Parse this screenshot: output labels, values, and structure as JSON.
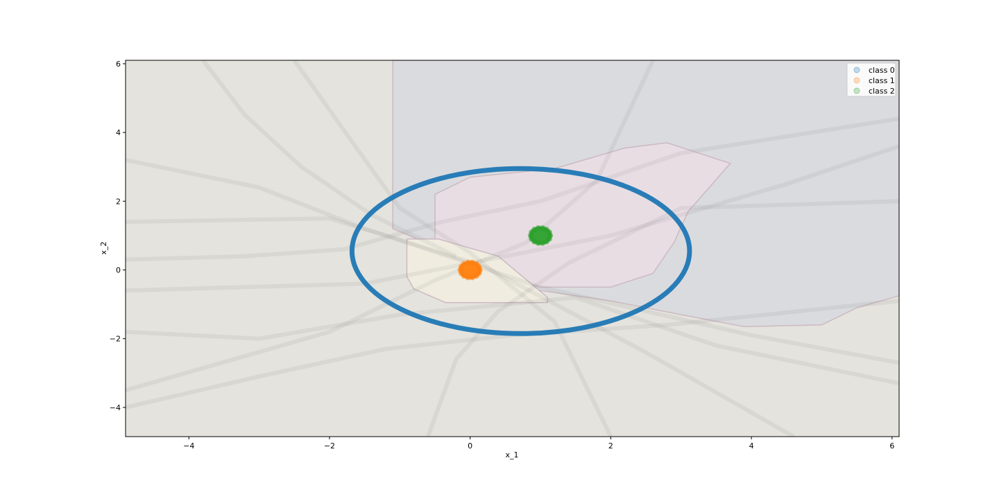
{
  "chart_data": {
    "type": "scatter",
    "title": "",
    "xlabel": "x_1",
    "ylabel": "x_2",
    "xlim": [
      -4.9,
      6.1
    ],
    "ylim": [
      -4.85,
      6.1
    ],
    "xticks": [
      -4,
      -2,
      0,
      2,
      4,
      6
    ],
    "yticks": [
      -4,
      -2,
      0,
      2,
      4,
      6
    ],
    "xtick_labels": [
      "−4",
      "−2",
      "0",
      "2",
      "4",
      "6"
    ],
    "ytick_labels": [
      "−4",
      "−2",
      "0",
      "2",
      "4",
      "6"
    ],
    "grid": false,
    "legend_position": "top-right",
    "background": {
      "description_type": "decision-region",
      "regions": [
        {
          "class": "class 0",
          "color": "#dadbde",
          "polygon": [
            [
              -1.1,
              6.1
            ],
            [
              6.1,
              6.1
            ],
            [
              6.1,
              -0.75
            ],
            [
              5.5,
              -1.1
            ],
            [
              5.0,
              -1.6
            ],
            [
              3.9,
              -1.65
            ],
            [
              3.0,
              -1.3
            ],
            [
              2.0,
              -0.9
            ],
            [
              1.0,
              -0.6
            ],
            [
              -1.1,
              1.2
            ]
          ]
        },
        {
          "class": "class 2",
          "color": "#e8dde3",
          "polygon": [
            [
              -0.5,
              2.2
            ],
            [
              0.0,
              2.7
            ],
            [
              1.2,
              2.95
            ],
            [
              2.2,
              3.55
            ],
            [
              2.8,
              3.7
            ],
            [
              3.7,
              3.1
            ],
            [
              3.4,
              2.4
            ],
            [
              3.1,
              1.7
            ],
            [
              2.9,
              0.8
            ],
            [
              2.6,
              -0.1
            ],
            [
              2.0,
              -0.5
            ],
            [
              1.0,
              -0.5
            ],
            [
              0.2,
              0.0
            ],
            [
              -0.5,
              0.6
            ]
          ]
        },
        {
          "class": "class 1",
          "color": "#f0ede0",
          "polygon": [
            [
              -0.9,
              0.9
            ],
            [
              -0.45,
              0.9
            ],
            [
              0.4,
              0.4
            ],
            [
              1.1,
              -0.8
            ],
            [
              1.1,
              -0.95
            ],
            [
              -0.35,
              -0.95
            ],
            [
              -0.8,
              -0.55
            ],
            [
              -0.9,
              -0.2
            ]
          ]
        }
      ]
    },
    "series": [
      {
        "name": "class 0",
        "color": "#1f77b4",
        "shape": "ellipse",
        "center": [
          0.72,
          0.55
        ],
        "radius_x": 2.4,
        "radius_y": 2.4
      },
      {
        "name": "class 1",
        "color": "#ff7f0e",
        "shape": "cluster",
        "center": [
          0.0,
          0.0
        ],
        "radius": 0.13
      },
      {
        "name": "class 2",
        "color": "#2ca02c",
        "shape": "cluster",
        "center": [
          1.0,
          1.0
        ],
        "radius": 0.13
      }
    ]
  }
}
